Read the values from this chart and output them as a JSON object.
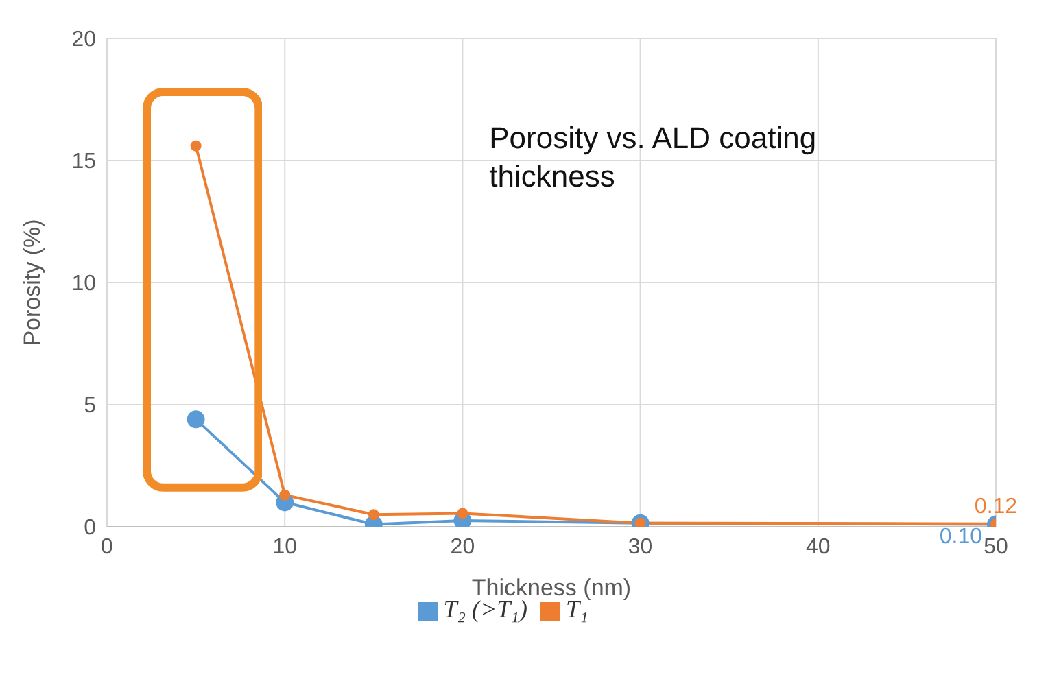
{
  "chart_data": {
    "type": "line",
    "xlabel": "Thickness (nm)",
    "ylabel": "Porosity (%)",
    "annotations": [
      "Porosity vs. ALD coating thickness"
    ],
    "x": [
      5,
      10,
      15,
      20,
      30,
      50
    ],
    "series": [
      {
        "name": "T₂ (>T₁)",
        "color": "#5b9bd5",
        "values": [
          4.4,
          1.0,
          0.1,
          0.25,
          0.15,
          0.1
        ],
        "value_labels": [
          null,
          null,
          null,
          null,
          null,
          "0.10"
        ]
      },
      {
        "name": "T₁",
        "color": "#ed7d31",
        "values": [
          15.6,
          1.3,
          0.5,
          0.55,
          0.15,
          0.12
        ],
        "value_labels": [
          null,
          null,
          null,
          null,
          null,
          "0.12"
        ]
      }
    ],
    "xlim": [
      0,
      50
    ],
    "xticks": [
      0,
      10,
      20,
      30,
      40,
      50
    ],
    "ylim": [
      0,
      20
    ],
    "yticks": [
      0,
      5,
      10,
      15,
      20
    ],
    "grid": true,
    "legend": "bottom",
    "marker": "circle",
    "line_style": "solid"
  }
}
